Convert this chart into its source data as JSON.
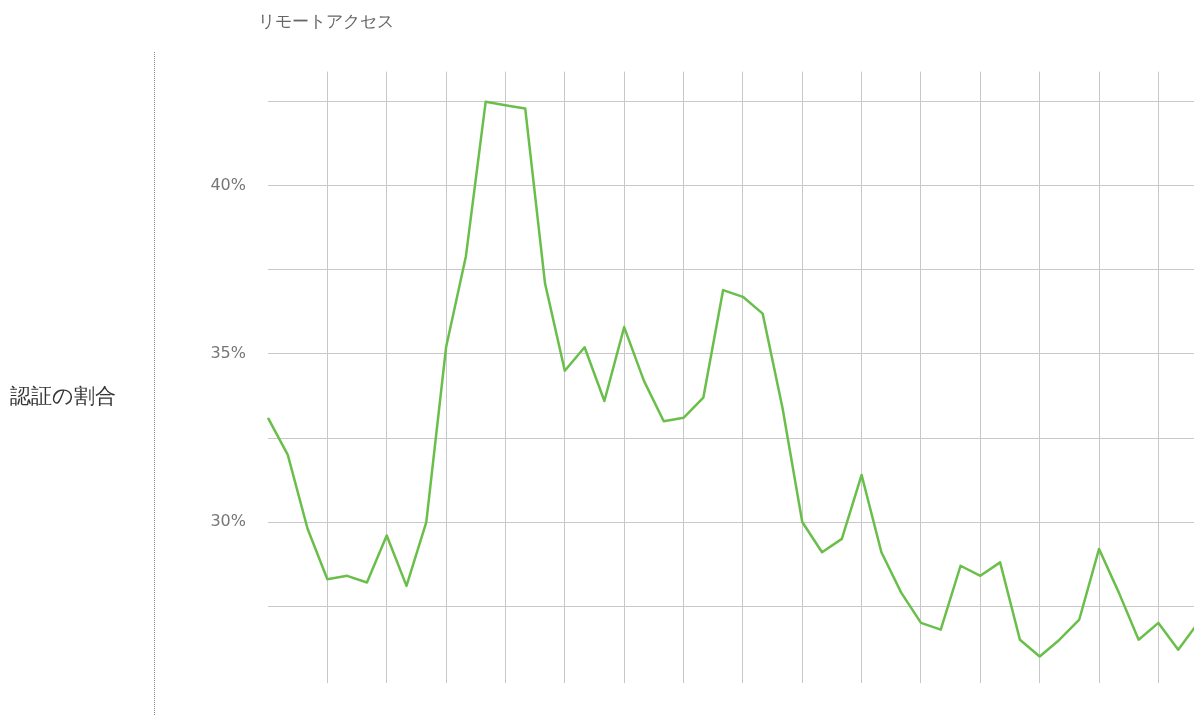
{
  "chart_data": {
    "type": "line",
    "title": "リモートアクセス",
    "ylabel": "認証の割合",
    "categories": [
      null,
      null,
      null,
      null,
      null,
      null,
      null,
      null,
      null,
      null,
      null,
      null,
      null,
      null,
      null,
      null,
      null,
      null,
      null,
      null,
      null,
      null,
      null,
      null,
      null,
      null,
      null,
      null,
      null,
      null,
      null,
      null,
      null,
      null,
      null,
      null,
      null,
      null,
      null,
      null,
      null,
      null,
      null,
      null,
      null,
      null,
      null,
      null
    ],
    "series": [
      {
        "color": "#6abf4b",
        "values": [
          33.1,
          32.0,
          29.8,
          28.3,
          28.4,
          28.2,
          29.6,
          28.1,
          30.0,
          35.2,
          37.9,
          42.5,
          42.4,
          42.3,
          37.1,
          34.5,
          35.2,
          33.6,
          35.8,
          34.2,
          33.0,
          33.1,
          33.7,
          36.9,
          36.7,
          36.2,
          33.4,
          30.0,
          29.1,
          29.5,
          31.4,
          29.1,
          27.9,
          27.0,
          26.8,
          28.7,
          28.4,
          28.8,
          26.5,
          26.0,
          26.5,
          27.1,
          29.2,
          27.9,
          26.5,
          27.0,
          26.2,
          27.0
        ]
      }
    ],
    "ylim": [
      25.2,
      43.4
    ],
    "yticks": [
      {
        "value": 27.5,
        "label": null
      },
      {
        "value": 30,
        "label": "30%"
      },
      {
        "value": 32.5,
        "label": null
      },
      {
        "value": 35,
        "label": "35%"
      },
      {
        "value": 37.5,
        "label": null
      },
      {
        "value": 40,
        "label": "40%"
      },
      {
        "value": 42.5,
        "label": null
      }
    ],
    "grid": true,
    "tick_labels": "y",
    "marker": "none",
    "line_style": "solid",
    "legend": false
  }
}
